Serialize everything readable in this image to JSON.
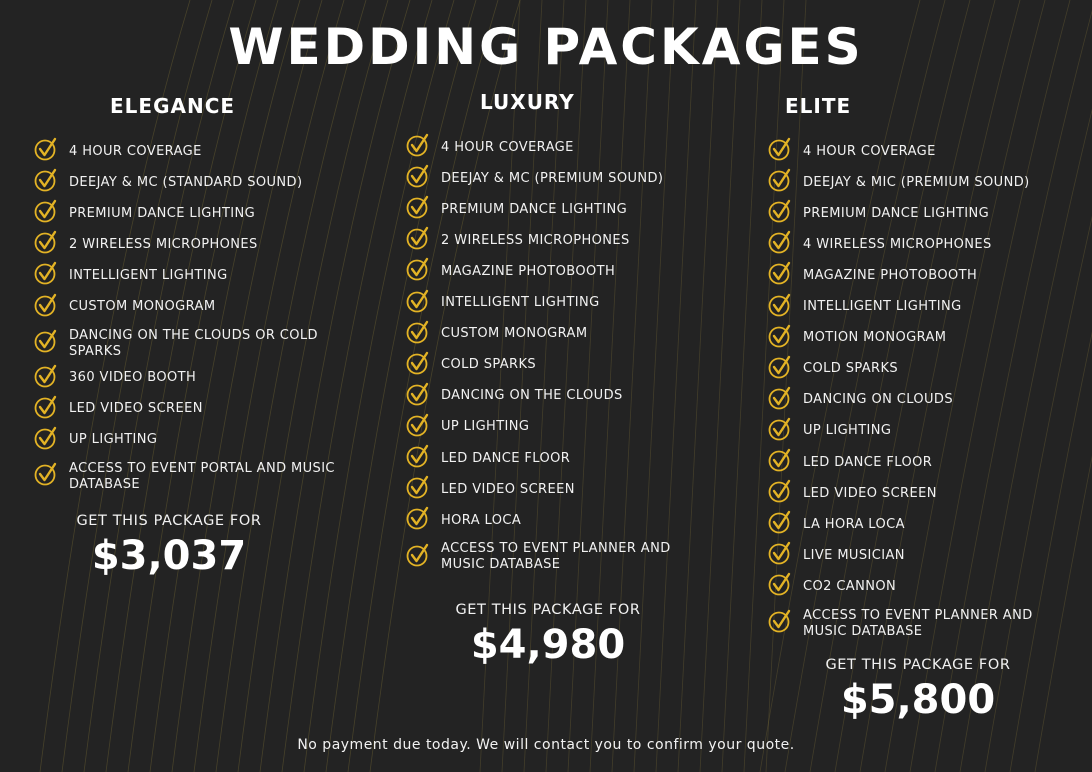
{
  "title": "WEDDING PACKAGES",
  "accent": "#e3b325",
  "packages": [
    {
      "name": "ELEGANCE",
      "items": [
        "4 HOUR COVERAGE",
        "DEEJAY & MC (STANDARD SOUND)",
        "PREMIUM DANCE LIGHTING",
        "2 WIRELESS MICROPHONES",
        "INTELLIGENT LIGHTING",
        "CUSTOM MONOGRAM",
        "DANCING ON THE CLOUDS OR COLD SPARKS",
        "360 VIDEO BOOTH",
        "LED VIDEO SCREEN",
        "UP LIGHTING",
        "ACCESS TO EVENT PORTAL AND MUSIC DATABASE"
      ],
      "cta": "GET THIS PACKAGE FOR",
      "price": "$3,037"
    },
    {
      "name": "LUXURY",
      "items": [
        "4 HOUR COVERAGE",
        "DEEJAY & MC (PREMIUM SOUND)",
        "PREMIUM DANCE LIGHTING",
        "2 WIRELESS MICROPHONES",
        "MAGAZINE PHOTOBOOTH",
        "INTELLIGENT LIGHTING",
        "CUSTOM MONOGRAM",
        "COLD SPARKS",
        "DANCING ON THE CLOUDS",
        "UP LIGHTING",
        "LED DANCE FLOOR",
        "LED VIDEO SCREEN",
        "HORA LOCA",
        "ACCESS TO EVENT PLANNER AND MUSIC DATABASE"
      ],
      "cta": "GET THIS PACKAGE FOR",
      "price": "$4,980"
    },
    {
      "name": "ELITE",
      "items": [
        "4 HOUR COVERAGE",
        "DEEJAY & MIC (PREMIUM SOUND)",
        "PREMIUM DANCE LIGHTING",
        "4 WIRELESS MICROPHONES",
        "MAGAZINE PHOTOBOOTH",
        "INTELLIGENT LIGHTING",
        "MOTION MONOGRAM",
        "COLD SPARKS",
        "DANCING ON CLOUDS",
        "UP LIGHTING",
        "LED DANCE FLOOR",
        "LED VIDEO SCREEN",
        "LA HORA LOCA",
        "LIVE MUSICIAN",
        "CO2 CANNON",
        "ACCESS TO EVENT PLANNER AND MUSIC DATABASE"
      ],
      "cta": "GET THIS PACKAGE FOR",
      "price": "$5,800"
    }
  ],
  "footer": "No payment due today. We will contact you to confirm your quote."
}
